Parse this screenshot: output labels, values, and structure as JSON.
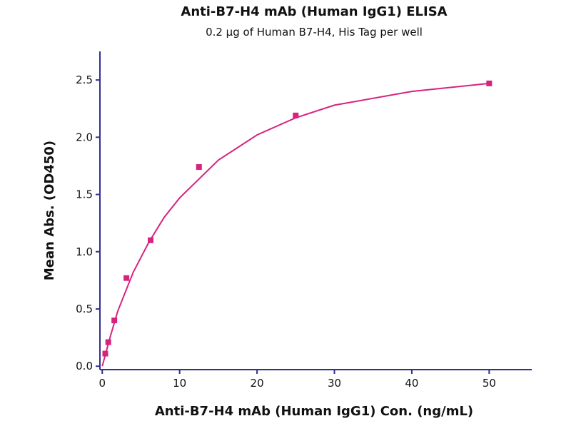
{
  "chart_data": {
    "type": "scatter",
    "title": "Anti-B7-H4 mAb (Human IgG1) ELISA",
    "subtitle": "0.2 μg of Human B7-H4, His Tag per well",
    "x_label": "Anti-B7-H4 mAb (Human IgG1) Con. (ng/mL)",
    "y_label": "Mean Abs. (OD450)",
    "xlim": [
      -0.3,
      55.5
    ],
    "ylim": [
      -0.03,
      2.75
    ],
    "xticks": [
      0,
      10,
      20,
      30,
      40,
      50
    ],
    "yticks": [
      {
        "value": 0,
        "label": "0.0"
      },
      {
        "value": 0.5,
        "label": "0.5"
      },
      {
        "value": 1,
        "label": "1.0"
      },
      {
        "value": 1.5,
        "label": "1.5"
      },
      {
        "value": 2,
        "label": "2.0"
      },
      {
        "value": 2.5,
        "label": "2.5"
      }
    ],
    "axis_color": "#2e3192",
    "series": [
      {
        "type": "scatter",
        "color": "#d6247e",
        "x": [
          0.39,
          0.78,
          1.56,
          3.125,
          6.25,
          12.5,
          25,
          50
        ],
        "values": [
          0.11,
          0.21,
          0.4,
          0.77,
          1.1,
          1.74,
          2.19,
          2.47
        ]
      },
      {
        "type": "line",
        "color": "#d6247e",
        "x": [
          0,
          1,
          2,
          4,
          6,
          8,
          10,
          15,
          20,
          25,
          30,
          40,
          50
        ],
        "values": [
          0,
          0.25,
          0.48,
          0.82,
          1.08,
          1.3,
          1.47,
          1.8,
          2.02,
          2.17,
          2.28,
          2.4,
          2.47
        ]
      }
    ]
  }
}
